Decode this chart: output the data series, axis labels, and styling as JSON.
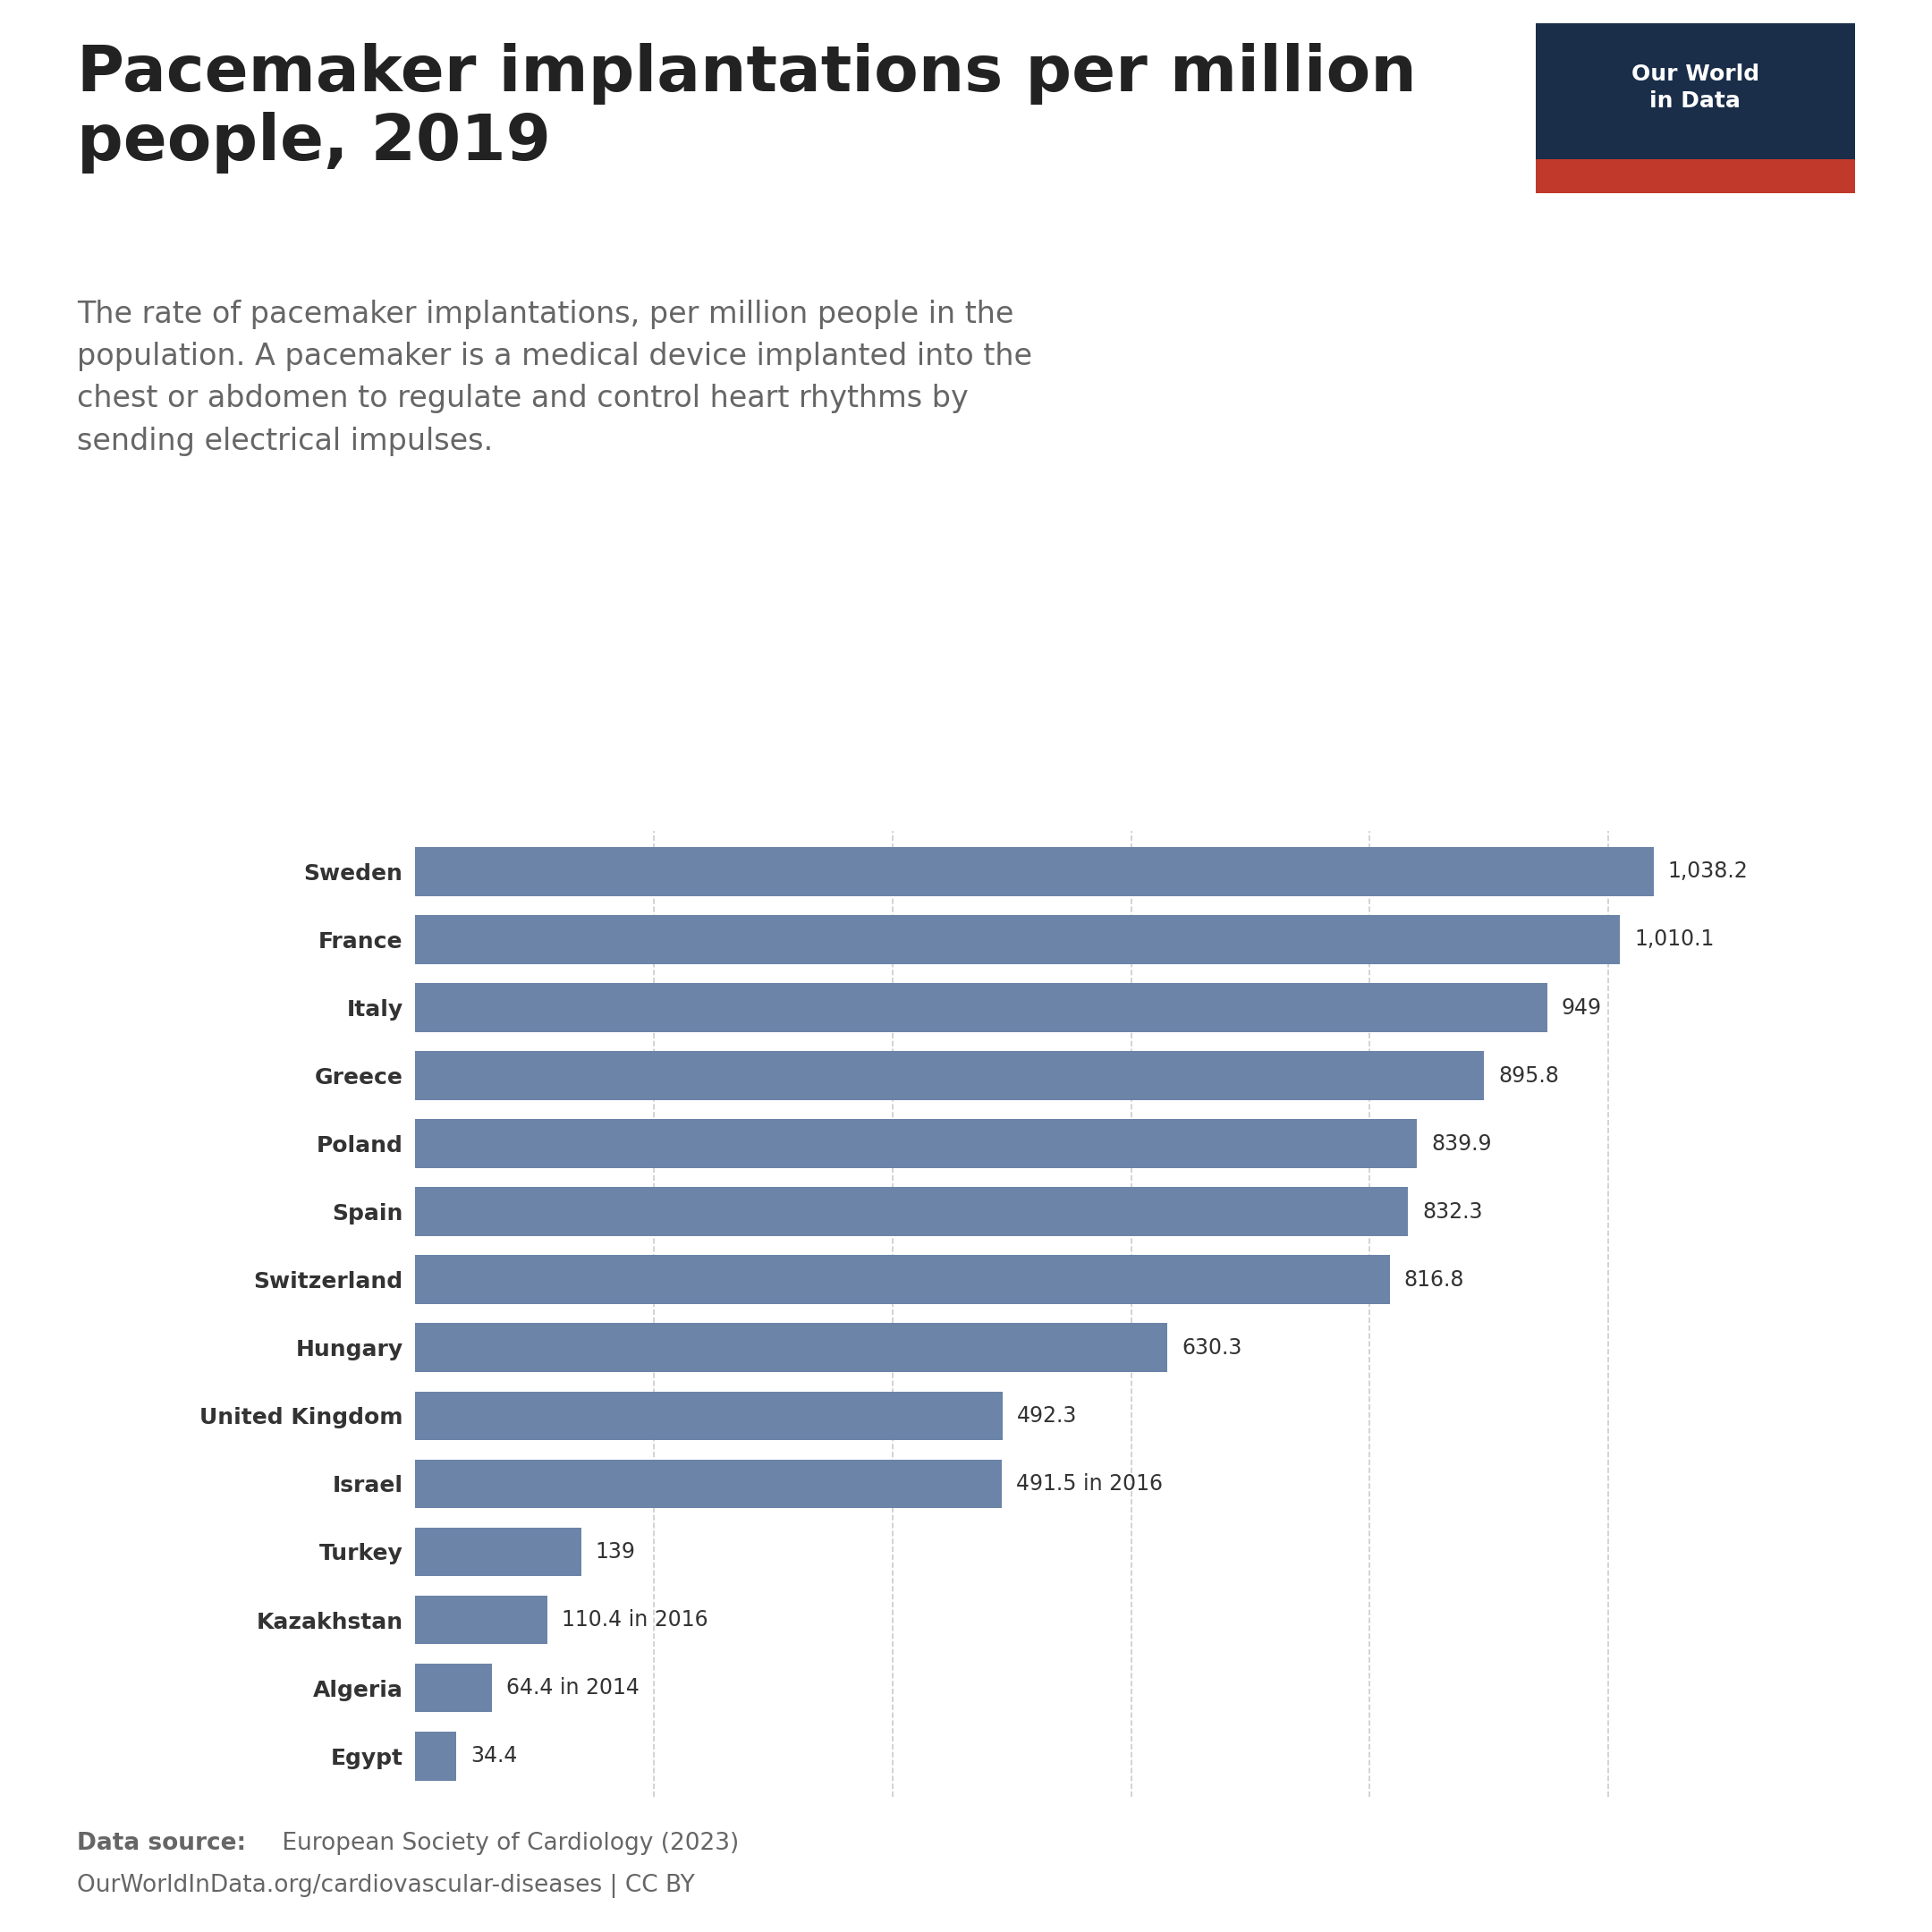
{
  "title": "Pacemaker implantations per million\npeople, 2019",
  "subtitle": "The rate of pacemaker implantations, per million people in the\npopulation. A pacemaker is a medical device implanted into the\nchest or abdomen to regulate and control heart rhythms by\nsending electrical impulses.",
  "countries": [
    "Sweden",
    "France",
    "Italy",
    "Greece",
    "Poland",
    "Spain",
    "Switzerland",
    "Hungary",
    "United Kingdom",
    "Israel",
    "Turkey",
    "Kazakhstan",
    "Algeria",
    "Egypt"
  ],
  "values": [
    1038.2,
    1010.1,
    949,
    895.8,
    839.9,
    832.3,
    816.8,
    630.3,
    492.3,
    491.5,
    139,
    110.4,
    64.4,
    34.4
  ],
  "value_labels": [
    "1,038.2",
    "1,010.1",
    "949",
    "895.8",
    "839.9",
    "832.3",
    "816.8",
    "630.3",
    "492.3",
    "491.5 in 2016",
    "139",
    "110.4 in 2016",
    "64.4 in 2014",
    "34.4"
  ],
  "bar_color": "#6b84a8",
  "background_color": "#ffffff",
  "text_color": "#333333",
  "subtitle_color": "#666666",
  "source_text_bold": "Data source:",
  "source_text": " European Society of Cardiology (2023)",
  "source_url": "OurWorldInData.org/cardiovascular-diseases | CC BY",
  "logo_bg_color": "#1a2e4a",
  "logo_red_color": "#c0392b",
  "logo_text": "Our World\nin Data",
  "grid_color": "#cccccc",
  "xlim": [
    0,
    1150
  ],
  "grid_values": [
    200,
    400,
    600,
    800,
    1000
  ]
}
